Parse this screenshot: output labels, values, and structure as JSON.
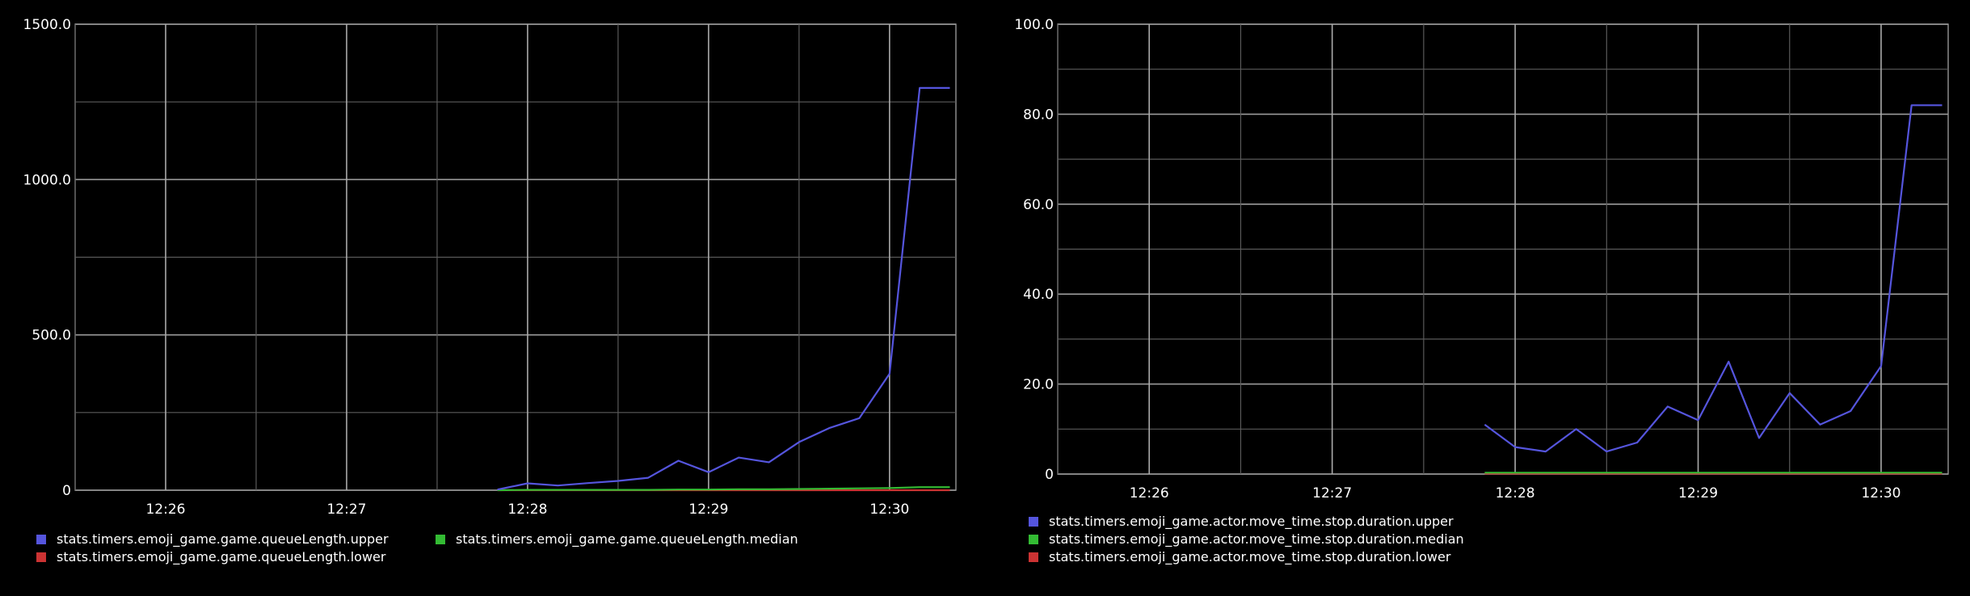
{
  "chart_data": [
    {
      "type": "line",
      "title": "",
      "xlabel": "",
      "ylabel": "",
      "x_tick_labels": [
        "12:26",
        "12:27",
        "12:28",
        "12:29",
        "12:30"
      ],
      "y_tick_labels": [
        "0",
        "500.0",
        "1000.0",
        "1500.0"
      ],
      "xlim": [
        "12:25:30",
        "12:30:22"
      ],
      "ylim": [
        0,
        1500
      ],
      "grid": true,
      "legend_position": "bottom-left",
      "x": [
        "12:27:50",
        "12:28:00",
        "12:28:10",
        "12:28:20",
        "12:28:30",
        "12:28:40",
        "12:28:50",
        "12:29:00",
        "12:29:10",
        "12:29:20",
        "12:29:30",
        "12:29:40",
        "12:29:50",
        "12:30:00",
        "12:30:10",
        "12:30:20"
      ],
      "series": [
        {
          "name": "stats.timers.emoji_game.game.queueLength.upper",
          "color": "#5555dd",
          "values": [
            2,
            22,
            15,
            23,
            30,
            40,
            95,
            58,
            105,
            90,
            155,
            200,
            232,
            375,
            1295,
            1295
          ]
        },
        {
          "name": "stats.timers.emoji_game.game.queueLength.median",
          "color": "#33bb33",
          "values": [
            0,
            1,
            1,
            1,
            1,
            1,
            2,
            2,
            3,
            3,
            4,
            5,
            6,
            7,
            10,
            10
          ]
        },
        {
          "name": "stats.timers.emoji_game.game.queueLength.lower",
          "color": "#cc3333",
          "values": [
            0,
            0,
            0,
            0,
            0,
            0,
            0,
            0,
            0,
            0,
            0,
            0,
            0,
            0,
            0,
            0
          ]
        }
      ]
    },
    {
      "type": "line",
      "title": "",
      "xlabel": "",
      "ylabel": "",
      "x_tick_labels": [
        "12:26",
        "12:27",
        "12:28",
        "12:29",
        "12:30"
      ],
      "y_tick_labels": [
        "0",
        "20.0",
        "40.0",
        "60.0",
        "80.0",
        "100.0"
      ],
      "xlim": [
        "12:25:30",
        "12:30:22"
      ],
      "ylim": [
        0,
        100
      ],
      "grid": true,
      "legend_position": "bottom-left",
      "x": [
        "12:27:50",
        "12:28:00",
        "12:28:10",
        "12:28:20",
        "12:28:30",
        "12:28:40",
        "12:28:50",
        "12:29:00",
        "12:29:10",
        "12:29:20",
        "12:29:30",
        "12:29:40",
        "12:29:50",
        "12:30:00",
        "12:30:10",
        "12:30:20"
      ],
      "series": [
        {
          "name": "stats.timers.emoji_game.actor.move_time.stop.duration.upper",
          "color": "#5555dd",
          "values": [
            11,
            6,
            5,
            10,
            5,
            7,
            15,
            12,
            25,
            8,
            18,
            11,
            14,
            24,
            82,
            82
          ]
        },
        {
          "name": "stats.timers.emoji_game.actor.move_time.stop.duration.median",
          "color": "#33bb33",
          "values": [
            0.3,
            0.3,
            0.3,
            0.3,
            0.3,
            0.3,
            0.3,
            0.3,
            0.3,
            0.3,
            0.3,
            0.3,
            0.3,
            0.3,
            0.3,
            0.3
          ]
        },
        {
          "name": "stats.timers.emoji_game.actor.move_time.stop.duration.lower",
          "color": "#cc3333",
          "values": [
            0.1,
            0.1,
            0.1,
            0.1,
            0.1,
            0.1,
            0.1,
            0.1,
            0.1,
            0.1,
            0.1,
            0.1,
            0.1,
            0.1,
            0.1,
            0.1
          ]
        }
      ]
    }
  ]
}
